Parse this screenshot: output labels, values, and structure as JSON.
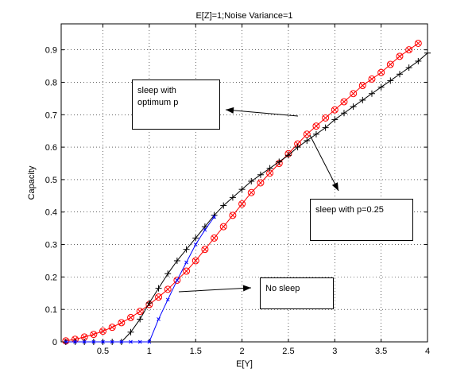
{
  "chart_data": {
    "type": "line",
    "title": "E[Z]=1;Noise Variance=1",
    "xlabel": "E[Y]",
    "ylabel": "Capacity",
    "xlim": [
      0.05,
      4.0
    ],
    "ylim": [
      0,
      0.98
    ],
    "xticks": [
      0.5,
      1,
      1.5,
      2,
      2.5,
      3,
      3.5,
      4
    ],
    "xtick_labels": [
      "0.5",
      "1",
      "1.5",
      "2",
      "2.5",
      "3",
      "3.5",
      "4"
    ],
    "yticks": [
      0,
      0.1,
      0.2,
      0.3,
      0.4,
      0.5,
      0.6,
      0.7,
      0.8,
      0.9
    ],
    "ytick_labels": [
      "0",
      "0.1",
      "0.2",
      "0.3",
      "0.4",
      "0.5",
      "0.6",
      "0.7",
      "0.8",
      "0.9"
    ],
    "grid": true,
    "series": [
      {
        "color": "#ff0000",
        "marker": "circle-x",
        "x": [
          0.1,
          0.2,
          0.3,
          0.4,
          0.5,
          0.6,
          0.7,
          0.8,
          0.9,
          1.0,
          1.1,
          1.2,
          1.3,
          1.4,
          1.5,
          1.6,
          1.7,
          1.8,
          1.9,
          2.0,
          2.1,
          2.2,
          2.3,
          2.4,
          2.5,
          2.6,
          2.7,
          2.8,
          2.9,
          3.0,
          3.1,
          3.2,
          3.3,
          3.4,
          3.5,
          3.6,
          3.7,
          3.8,
          3.9
        ],
        "y": [
          0.003,
          0.008,
          0.015,
          0.023,
          0.033,
          0.045,
          0.059,
          0.075,
          0.094,
          0.115,
          0.138,
          0.162,
          0.19,
          0.218,
          0.25,
          0.285,
          0.32,
          0.355,
          0.39,
          0.425,
          0.46,
          0.49,
          0.52,
          0.55,
          0.58,
          0.61,
          0.64,
          0.665,
          0.69,
          0.715,
          0.74,
          0.765,
          0.79,
          0.81,
          0.83,
          0.855,
          0.88,
          0.9,
          0.92
        ]
      },
      {
        "color": "#000000",
        "marker": "plus",
        "x": [
          0.1,
          0.2,
          0.3,
          0.4,
          0.5,
          0.6,
          0.7,
          0.8,
          0.9,
          1.0,
          1.1,
          1.2,
          1.3,
          1.4,
          1.5,
          1.6,
          1.7,
          1.8,
          1.9,
          2.0,
          2.1,
          2.2,
          2.3,
          2.4,
          2.5,
          2.6,
          2.7,
          2.8,
          2.9,
          3.0,
          3.1,
          3.2,
          3.3,
          3.4,
          3.5,
          3.6,
          3.7,
          3.8,
          3.9,
          4.0
        ],
        "y": [
          0,
          0,
          0,
          0,
          0,
          0,
          0,
          0.03,
          0.07,
          0.12,
          0.165,
          0.21,
          0.25,
          0.285,
          0.32,
          0.355,
          0.39,
          0.42,
          0.445,
          0.47,
          0.495,
          0.515,
          0.535,
          0.555,
          0.575,
          0.6,
          0.62,
          0.64,
          0.66,
          0.685,
          0.705,
          0.725,
          0.745,
          0.765,
          0.785,
          0.805,
          0.825,
          0.845,
          0.865,
          0.89
        ]
      },
      {
        "color": "#0000ff",
        "marker": "x",
        "x": [
          0.1,
          0.2,
          0.3,
          0.4,
          0.5,
          0.6,
          0.7,
          0.8,
          0.9,
          1.0,
          1.1,
          1.2,
          1.3,
          1.4,
          1.5,
          1.6,
          1.7
        ],
        "y": [
          0,
          0,
          0,
          0,
          0,
          0,
          0,
          0,
          0,
          0,
          0.07,
          0.13,
          0.19,
          0.245,
          0.3,
          0.345,
          0.385
        ]
      }
    ],
    "annotations": [
      {
        "text": "sleep with optimum p"
      },
      {
        "text": "sleep with p=0.25"
      },
      {
        "text": "No sleep"
      }
    ]
  }
}
